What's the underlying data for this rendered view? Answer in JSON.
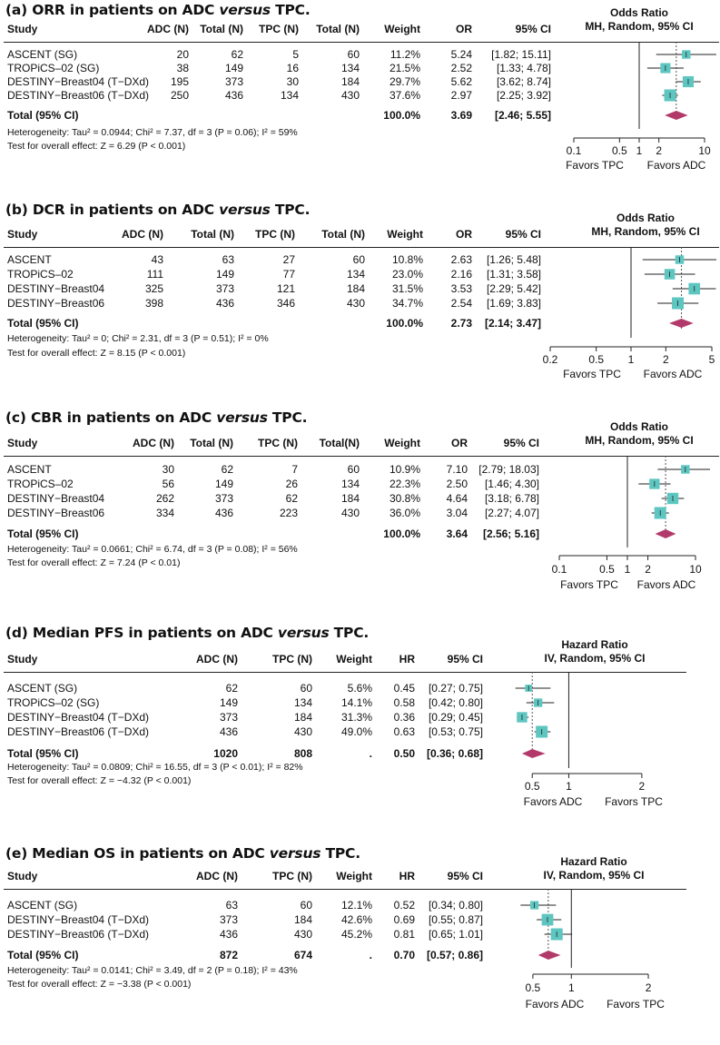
{
  "chart_data": [
    {
      "type": "forest",
      "id": "a",
      "title_pre": "(a) ORR in patients on ADC ",
      "title_italic": "versus",
      "title_post": " TPC.",
      "headers": [
        "Study",
        "ADC (N)",
        "Total (N)",
        "TPC (N)",
        "Total (N)",
        "Weight",
        "OR",
        "95% CI"
      ],
      "plot_header": [
        "Odds Ratio",
        "MH, Random, 95% CI"
      ],
      "rows": [
        {
          "cells": [
            "ASCENT (SG)",
            "20",
            "62",
            "5",
            "60",
            "11.2%",
            "5.24",
            "[1.82; 15.11]"
          ],
          "est": 5.24,
          "lo": 1.82,
          "hi": 15.11,
          "weight": 11.2
        },
        {
          "cells": [
            "TROPiCS–02 (SG)",
            "38",
            "149",
            "16",
            "134",
            "21.5%",
            "2.52",
            "[1.33; 4.78]"
          ],
          "est": 2.52,
          "lo": 1.33,
          "hi": 4.78,
          "weight": 21.5
        },
        {
          "cells": [
            "DESTINY−Breast04 (T−DXd)",
            "195",
            "373",
            "30",
            "184",
            "29.7%",
            "5.62",
            "[3.62; 8.74]"
          ],
          "est": 5.62,
          "lo": 3.62,
          "hi": 8.74,
          "weight": 29.7
        },
        {
          "cells": [
            "DESTINY−Breast06 (T−DXd)",
            "250",
            "436",
            "134",
            "430",
            "37.6%",
            "2.97",
            "[2.25; 3.92]"
          ],
          "est": 2.97,
          "lo": 2.25,
          "hi": 3.92,
          "weight": 37.6
        }
      ],
      "total": {
        "cells": [
          "Total (95% CI)",
          "",
          "",
          "",
          "",
          "100.0%",
          "3.69",
          "[2.46; 5.55]"
        ],
        "est": 3.69,
        "lo": 2.46,
        "hi": 5.55
      },
      "heterogeneity": "Heterogeneity: Tau² = 0.0944; Chi² = 7.37, df = 3 (P = 0.06); I² = 59%",
      "overall_test": "Test for overall effect: Z = 6.29 (P < 0.001)",
      "scale": "log",
      "xlim": [
        0.1,
        10
      ],
      "ref": 1,
      "ticks": [
        0.1,
        0.5,
        1,
        2,
        10
      ],
      "tick_labels": [
        "0.1",
        "0.5",
        "1",
        "2",
        "10"
      ],
      "favors_left": "Favors TPC",
      "favors_right": "Favors ADC"
    },
    {
      "type": "forest",
      "id": "b",
      "title_pre": "(b) DCR in patients on ADC ",
      "title_italic": "versus",
      "title_post": " TPC.",
      "headers": [
        "Study",
        "ADC (N)",
        "Total (N)",
        "TPC (N)",
        "Total (N)",
        "Weight",
        "OR",
        "95% CI"
      ],
      "plot_header": [
        "Odds Ratio",
        "MH, Random, 95% CI"
      ],
      "rows": [
        {
          "cells": [
            "ASCENT",
            "43",
            "63",
            "27",
            "60",
            "10.8%",
            "2.63",
            "[1.26; 5.48]"
          ],
          "est": 2.63,
          "lo": 1.26,
          "hi": 5.48,
          "weight": 10.8
        },
        {
          "cells": [
            "TROPiCS–02",
            "111",
            "149",
            "77",
            "134",
            "23.0%",
            "2.16",
            "[1.31; 3.58]"
          ],
          "est": 2.16,
          "lo": 1.31,
          "hi": 3.58,
          "weight": 23.0
        },
        {
          "cells": [
            "DESTINY−Breast04",
            "325",
            "373",
            "121",
            "184",
            "31.5%",
            "3.53",
            "[2.29; 5.42]"
          ],
          "est": 3.53,
          "lo": 2.29,
          "hi": 5.42,
          "weight": 31.5
        },
        {
          "cells": [
            "DESTINY−Breast06",
            "398",
            "436",
            "346",
            "430",
            "34.7%",
            "2.54",
            "[1.69; 3.83]"
          ],
          "est": 2.54,
          "lo": 1.69,
          "hi": 3.83,
          "weight": 34.7
        }
      ],
      "total": {
        "cells": [
          "Total (95% CI)",
          "",
          "",
          "",
          "",
          "100.0%",
          "2.73",
          "[2.14; 3.47]"
        ],
        "est": 2.73,
        "lo": 2.14,
        "hi": 3.47
      },
      "heterogeneity": "Heterogeneity: Tau² = 0; Chi² = 2.31, df = 3 (P = 0.51); I² = 0%",
      "overall_test": "Test for overall effect: Z = 8.15 (P < 0.001)",
      "scale": "log",
      "xlim": [
        0.2,
        5
      ],
      "ref": 1,
      "ticks": [
        0.2,
        0.5,
        1,
        2,
        5
      ],
      "tick_labels": [
        "0.2",
        "0.5",
        "1",
        "2",
        "5"
      ],
      "favors_left": "Favors TPC",
      "favors_right": "Favors ADC"
    },
    {
      "type": "forest",
      "id": "c",
      "title_pre": "(c) CBR in patients on ADC ",
      "title_italic": "versus",
      "title_post": " TPC.",
      "headers": [
        "Study",
        "ADC (N)",
        "Total (N)",
        "TPC (N)",
        "Total(N)",
        "Weight",
        "OR",
        "95% CI"
      ],
      "plot_header": [
        "Odds Ratio",
        "MH, Random, 95% CI"
      ],
      "rows": [
        {
          "cells": [
            "ASCENT",
            "30",
            "62",
            "7",
            "60",
            "10.9%",
            "7.10",
            "[2.79; 18.03]"
          ],
          "est": 7.1,
          "lo": 2.79,
          "hi": 18.03,
          "weight": 10.9
        },
        {
          "cells": [
            "TROPiCS–02",
            "56",
            "149",
            "26",
            "134",
            "22.3%",
            "2.50",
            "[1.46; 4.30]"
          ],
          "est": 2.5,
          "lo": 1.46,
          "hi": 4.3,
          "weight": 22.3
        },
        {
          "cells": [
            "DESTINY−Breast04",
            "262",
            "373",
            "62",
            "184",
            "30.8%",
            "4.64",
            "[3.18; 6.78]"
          ],
          "est": 4.64,
          "lo": 3.18,
          "hi": 6.78,
          "weight": 30.8
        },
        {
          "cells": [
            "DESTINY−Breast06",
            "334",
            "436",
            "223",
            "430",
            "36.0%",
            "3.04",
            "[2.27; 4.07]"
          ],
          "est": 3.04,
          "lo": 2.27,
          "hi": 4.07,
          "weight": 36.0
        }
      ],
      "total": {
        "cells": [
          "Total (95% CI)",
          "",
          "",
          "",
          "",
          "100.0%",
          "3.64",
          "[2.56; 5.16]"
        ],
        "est": 3.64,
        "lo": 2.56,
        "hi": 5.16
      },
      "heterogeneity": "Heterogeneity: Tau² = 0.0661; Chi² = 6.74, df = 3 (P = 0.08); I² = 56%",
      "overall_test": "Test for overall effect: Z = 7.24 (P < 0.01)",
      "scale": "log",
      "xlim": [
        0.1,
        10
      ],
      "ref": 1,
      "ticks": [
        0.1,
        0.5,
        1,
        2,
        10
      ],
      "tick_labels": [
        "0.1",
        "0.5",
        "1",
        "2",
        "10"
      ],
      "favors_left": "Favors TPC",
      "favors_right": "Favors ADC"
    },
    {
      "type": "forest",
      "id": "d",
      "title_pre": "(d) Median PFS  in patients on ADC ",
      "title_italic": "versus",
      "title_post": " TPC.",
      "headers": [
        "Study",
        "ADC (N)",
        "TPC (N)",
        "Weight",
        "HR",
        "95% CI"
      ],
      "plot_header": [
        "Hazard Ratio",
        "IV, Random, 95% CI"
      ],
      "rows": [
        {
          "cells": [
            "ASCENT (SG)",
            "62",
            "60",
            "5.6%",
            "0.45",
            "[0.27; 0.75]"
          ],
          "est": 0.45,
          "lo": 0.27,
          "hi": 0.75,
          "weight": 5.6
        },
        {
          "cells": [
            "TROPiCS–02 (SG)",
            "149",
            "134",
            "14.1%",
            "0.58",
            "[0.42; 0.80]"
          ],
          "est": 0.58,
          "lo": 0.42,
          "hi": 0.8,
          "weight": 14.1
        },
        {
          "cells": [
            "DESTINY−Breast04 (T−DXd)",
            "373",
            "184",
            "31.3%",
            "0.36",
            "[0.29; 0.45]"
          ],
          "est": 0.36,
          "lo": 0.29,
          "hi": 0.45,
          "weight": 31.3
        },
        {
          "cells": [
            "DESTINY−Breast06 (T−DXd)",
            "436",
            "430",
            "49.0%",
            "0.63",
            "[0.53; 0.75]"
          ],
          "est": 0.63,
          "lo": 0.53,
          "hi": 0.75,
          "weight": 49.0
        }
      ],
      "total": {
        "cells": [
          "Total (95% CI)",
          "1020",
          "808",
          ".",
          "0.50",
          "[0.36; 0.68]"
        ],
        "est": 0.5,
        "lo": 0.36,
        "hi": 0.68
      },
      "heterogeneity": "Heterogeneity: Tau² = 0.0809; Chi² = 16.55, df = 3 (P < 0.01); I² = 82%",
      "overall_test": "Test for overall effect: Z = −4.32 (P < 0.001)",
      "scale": "linear",
      "xlim": [
        0.05,
        2.25
      ],
      "ref": 1,
      "ticks": [
        0.5,
        1,
        2
      ],
      "tick_labels": [
        "0.5",
        "1",
        "2"
      ],
      "favors_left": "Favors ADC",
      "favors_right": "Favors TPC"
    },
    {
      "type": "forest",
      "id": "e",
      "title_pre": "(e) Median OS in patients on ADC ",
      "title_italic": "versus",
      "title_post": " TPC.",
      "headers": [
        "Study",
        "ADC (N)",
        "TPC (N)",
        "Weight",
        "HR",
        "95% CI"
      ],
      "plot_header": [
        "Hazard Ratio",
        "IV, Random, 95% CI"
      ],
      "rows": [
        {
          "cells": [
            "ASCENT (SG)",
            "63",
            "60",
            "12.1%",
            "0.52",
            "[0.34; 0.80]"
          ],
          "est": 0.52,
          "lo": 0.34,
          "hi": 0.8,
          "weight": 12.1
        },
        {
          "cells": [
            "DESTINY−Breast04 (T−DXd)",
            "373",
            "184",
            "42.6%",
            "0.69",
            "[0.55; 0.87]"
          ],
          "est": 0.69,
          "lo": 0.55,
          "hi": 0.87,
          "weight": 42.6
        },
        {
          "cells": [
            "DESTINY−Breast06 (T−DXd)",
            "436",
            "430",
            "45.2%",
            "0.81",
            "[0.65; 1.01]"
          ],
          "est": 0.81,
          "lo": 0.65,
          "hi": 1.01,
          "weight": 45.2
        }
      ],
      "total": {
        "cells": [
          "Total (95% CI)",
          "872",
          "674",
          ".",
          "0.70",
          "[0.57; 0.86]"
        ],
        "est": 0.7,
        "lo": 0.57,
        "hi": 0.86
      },
      "heterogeneity": "Heterogeneity: Tau² = 0.0141; Chi² = 3.49, df = 2 (P = 0.18); I² = 43%",
      "overall_test": "Test for overall effect: Z = −3.38 (P < 0.001)",
      "scale": "linear",
      "xlim": [
        0.1,
        2.2
      ],
      "ref": 1,
      "ticks": [
        0.5,
        1,
        2
      ],
      "tick_labels": [
        "0.5",
        "1",
        "2"
      ],
      "favors_left": "Favors ADC",
      "favors_right": "Favors TPC"
    }
  ],
  "colors": {
    "study_box": "#5ec6c0",
    "diamond": "#b23a6b",
    "line": "#222222",
    "dotted": "#555555"
  }
}
